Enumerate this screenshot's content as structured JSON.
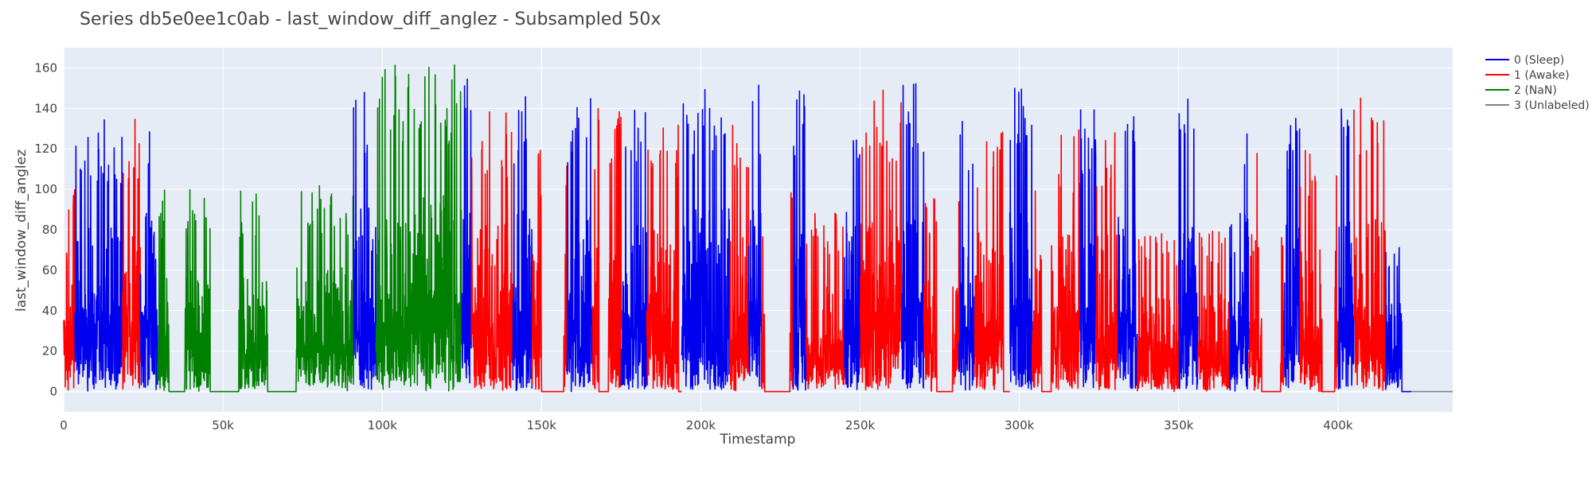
{
  "chart_data": {
    "type": "line",
    "title": "Series db5e0ee1c0ab - last_window_diff_anglez - Subsampled 50x",
    "xlabel": "Timestamp",
    "ylabel": "last_window_diff_anglez",
    "xlim": [
      0,
      436000
    ],
    "ylim": [
      -10,
      170
    ],
    "x_ticks": [
      0,
      50000,
      100000,
      150000,
      200000,
      250000,
      300000,
      350000,
      400000
    ],
    "x_tick_labels": [
      "0",
      "50k",
      "100k",
      "150k",
      "200k",
      "250k",
      "300k",
      "350k",
      "400k"
    ],
    "y_ticks": [
      0,
      20,
      40,
      60,
      80,
      100,
      120,
      140,
      160
    ],
    "y_tick_labels": [
      "0",
      "20",
      "40",
      "60",
      "80",
      "100",
      "120",
      "140",
      "160"
    ],
    "grid": true,
    "legend_position": "top-right outside",
    "background": "#e5ecf6",
    "series": [
      {
        "name": "0 (Sleep)",
        "color": "#0000ee"
      },
      {
        "name": "1 (Awake)",
        "color": "#ff0000"
      },
      {
        "name": "2 (NaN)",
        "color": "#008000"
      },
      {
        "name": "3 (Unlabeled)",
        "color": "#808080"
      }
    ],
    "segments": [
      {
        "series": 1,
        "x": [
          0,
          3500
        ],
        "peak": 115,
        "zeros": [],
        "style": "burst"
      },
      {
        "series": 0,
        "x": [
          3500,
          18500
        ],
        "peak": 135,
        "zeros": [],
        "style": "burst"
      },
      {
        "series": 1,
        "x": [
          18500,
          24000
        ],
        "peak": 137,
        "zeros": [],
        "style": "burst"
      },
      {
        "series": 0,
        "x": [
          24000,
          29500
        ],
        "peak": 147,
        "zeros": [],
        "style": "burst"
      },
      {
        "series": 2,
        "x": [
          29500,
          56000
        ],
        "peak": 100,
        "zeros": [
          [
            33000,
            38000
          ],
          [
            46000,
            55000
          ]
        ],
        "style": "burst"
      },
      {
        "series": 2,
        "x": [
          56000,
          91000
        ],
        "peak": 102,
        "zeros": [
          [
            64000,
            73000
          ]
        ],
        "style": "burst"
      },
      {
        "series": 0,
        "x": [
          91000,
          98000
        ],
        "peak": 152,
        "zeros": [],
        "style": "burst"
      },
      {
        "series": 2,
        "x": [
          98000,
          125000
        ],
        "peak": 162,
        "zeros": [],
        "style": "burst"
      },
      {
        "series": 0,
        "x": [
          125000,
          128000
        ],
        "peak": 158,
        "zeros": [],
        "style": "burst"
      },
      {
        "series": 1,
        "x": [
          128000,
          141000
        ],
        "peak": 140,
        "zeros": [],
        "style": "burst"
      },
      {
        "series": 0,
        "x": [
          141000,
          147000
        ],
        "peak": 150,
        "zeros": [],
        "style": "burst"
      },
      {
        "series": 1,
        "x": [
          147000,
          158000
        ],
        "peak": 120,
        "zeros": [
          [
            150000,
            157000
          ]
        ],
        "style": "burst"
      },
      {
        "series": 0,
        "x": [
          158000,
          166000
        ],
        "peak": 150,
        "zeros": [],
        "style": "burst"
      },
      {
        "series": 1,
        "x": [
          166000,
          175000
        ],
        "peak": 140,
        "zeros": [
          [
            168000,
            171000
          ]
        ],
        "style": "burst"
      },
      {
        "series": 0,
        "x": [
          175000,
          183000
        ],
        "peak": 140,
        "zeros": [],
        "style": "burst"
      },
      {
        "series": 1,
        "x": [
          183000,
          194000
        ],
        "peak": 135,
        "zeros": [
          [
            193000,
            194000
          ]
        ],
        "style": "burst"
      },
      {
        "series": 0,
        "x": [
          194000,
          209000
        ],
        "peak": 152,
        "zeros": [],
        "style": "burst"
      },
      {
        "series": 1,
        "x": [
          209000,
          215000
        ],
        "peak": 136,
        "zeros": [],
        "style": "burst"
      },
      {
        "series": 0,
        "x": [
          215000,
          219000
        ],
        "peak": 153,
        "zeros": [],
        "style": "burst"
      },
      {
        "series": 1,
        "x": [
          219000,
          229000
        ],
        "peak": 100,
        "zeros": [
          [
            220000,
            228000
          ]
        ],
        "style": "burst"
      },
      {
        "series": 0,
        "x": [
          229000,
          233000
        ],
        "peak": 150,
        "zeros": [],
        "style": "burst"
      },
      {
        "series": 1,
        "x": [
          233000,
          245000
        ],
        "peak": 90,
        "zeros": [],
        "style": "burst"
      },
      {
        "series": 0,
        "x": [
          245000,
          250000
        ],
        "peak": 150,
        "zeros": [],
        "style": "burst"
      },
      {
        "series": 1,
        "x": [
          250000,
          263000
        ],
        "peak": 150,
        "zeros": [],
        "style": "burst"
      },
      {
        "series": 0,
        "x": [
          263000,
          270000
        ],
        "peak": 153,
        "zeros": [],
        "style": "burst"
      },
      {
        "series": 1,
        "x": [
          270000,
          281000
        ],
        "peak": 100,
        "zeros": [
          [
            274000,
            279000
          ]
        ],
        "style": "burst"
      },
      {
        "series": 0,
        "x": [
          281000,
          286000
        ],
        "peak": 135,
        "zeros": [],
        "style": "burst"
      },
      {
        "series": 1,
        "x": [
          286000,
          297000
        ],
        "peak": 132,
        "zeros": [
          [
            295000,
            297000
          ]
        ],
        "style": "burst"
      },
      {
        "series": 0,
        "x": [
          297000,
          304000
        ],
        "peak": 150,
        "zeros": [],
        "style": "burst"
      },
      {
        "series": 1,
        "x": [
          304000,
          319000
        ],
        "peak": 130,
        "zeros": [
          [
            307000,
            310000
          ]
        ],
        "style": "burst"
      },
      {
        "series": 0,
        "x": [
          319000,
          324000
        ],
        "peak": 140,
        "zeros": [],
        "style": "burst"
      },
      {
        "series": 1,
        "x": [
          324000,
          331000
        ],
        "peak": 130,
        "zeros": [],
        "style": "burst"
      },
      {
        "series": 0,
        "x": [
          331000,
          337000
        ],
        "peak": 145,
        "zeros": [],
        "style": "burst"
      },
      {
        "series": 1,
        "x": [
          337000,
          350000
        ],
        "peak": 80,
        "zeros": [],
        "style": "burst"
      },
      {
        "series": 0,
        "x": [
          350000,
          356000
        ],
        "peak": 148,
        "zeros": [],
        "style": "burst"
      },
      {
        "series": 1,
        "x": [
          356000,
          366000
        ],
        "peak": 80,
        "zeros": [],
        "style": "burst"
      },
      {
        "series": 0,
        "x": [
          366000,
          372000
        ],
        "peak": 147,
        "zeros": [],
        "style": "burst"
      },
      {
        "series": 1,
        "x": [
          372000,
          383000
        ],
        "peak": 130,
        "zeros": [
          [
            376000,
            382000
          ]
        ],
        "style": "burst"
      },
      {
        "series": 0,
        "x": [
          383000,
          388000
        ],
        "peak": 140,
        "zeros": [],
        "style": "burst"
      },
      {
        "series": 1,
        "x": [
          388000,
          400000
        ],
        "peak": 120,
        "zeros": [
          [
            395000,
            399000
          ]
        ],
        "style": "burst"
      },
      {
        "series": 0,
        "x": [
          400000,
          405000
        ],
        "peak": 140,
        "zeros": [],
        "style": "burst"
      },
      {
        "series": 1,
        "x": [
          405000,
          415000
        ],
        "peak": 147,
        "zeros": [],
        "style": "burst"
      },
      {
        "series": 0,
        "x": [
          415000,
          423000
        ],
        "peak": 74,
        "zeros": [
          [
            420000,
            423000
          ]
        ],
        "style": "burst"
      },
      {
        "series": 3,
        "x": [
          423000,
          436000
        ],
        "peak": 0,
        "zeros": [],
        "style": "flat"
      }
    ]
  }
}
